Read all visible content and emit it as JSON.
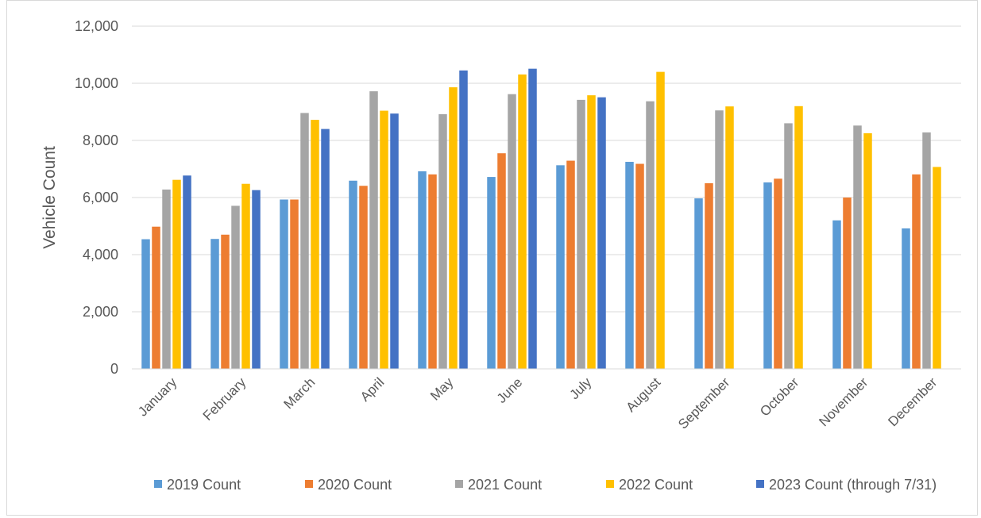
{
  "chart_data": {
    "type": "bar",
    "title": "",
    "xlabel": "",
    "ylabel": "Vehicle Count",
    "ylim": [
      0,
      12000
    ],
    "yticks": [
      0,
      2000,
      4000,
      6000,
      8000,
      10000,
      12000
    ],
    "ytick_labels": [
      "0",
      "2,000",
      "4,000",
      "6,000",
      "8,000",
      "10,000",
      "12,000"
    ],
    "grid": true,
    "legend_position": "bottom",
    "categories": [
      "January",
      "February",
      "March",
      "April",
      "May",
      "June",
      "July",
      "August",
      "September",
      "October",
      "November",
      "December"
    ],
    "series": [
      {
        "name": "2019 Count",
        "color": "#5b9bd5",
        "values": [
          4540,
          4550,
          5930,
          6590,
          6920,
          6720,
          7130,
          7250,
          5970,
          6530,
          5200,
          4920
        ]
      },
      {
        "name": "2020 Count",
        "color": "#ed7d31",
        "values": [
          4980,
          4700,
          5930,
          6410,
          6810,
          7550,
          7290,
          7180,
          6500,
          6660,
          6000,
          6810
        ]
      },
      {
        "name": "2021 Count",
        "color": "#a5a5a5",
        "values": [
          6280,
          5710,
          8960,
          9720,
          8920,
          9620,
          9420,
          9370,
          9050,
          8600,
          8520,
          8280
        ]
      },
      {
        "name": "2022 Count",
        "color": "#ffc000",
        "values": [
          6620,
          6480,
          8720,
          9040,
          9860,
          10310,
          9580,
          10400,
          9190,
          9200,
          8250,
          7070
        ]
      },
      {
        "name": "2023 Count (through 7/31)",
        "color": "#4472c4",
        "values": [
          6770,
          6260,
          8400,
          8940,
          10450,
          10510,
          9510,
          null,
          null,
          null,
          null,
          null
        ]
      }
    ]
  }
}
